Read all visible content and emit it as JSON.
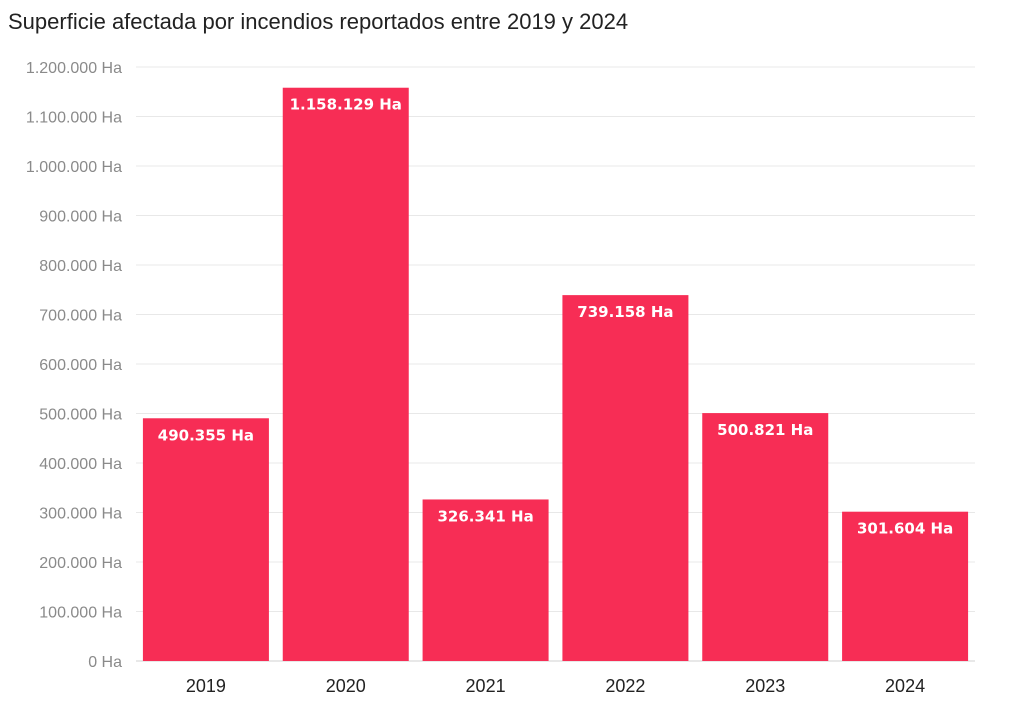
{
  "chart_data": {
    "type": "bar",
    "title": "Superficie afectada por incendios reportados entre 2019 y 2024",
    "xlabel": "",
    "ylabel": "",
    "categories": [
      "2019",
      "2020",
      "2021",
      "2022",
      "2023",
      "2024"
    ],
    "values": [
      490355,
      1158129,
      326341,
      739158,
      500821,
      301604
    ],
    "data_labels": [
      "490.355 Ha",
      "1.158.129 Ha",
      "326.341 Ha",
      "739.158 Ha",
      "500.821 Ha",
      "301.604 Ha"
    ],
    "ylim": [
      0,
      1200000
    ],
    "yticks": [
      0,
      100000,
      200000,
      300000,
      400000,
      500000,
      600000,
      700000,
      800000,
      900000,
      1000000,
      1100000,
      1200000
    ],
    "ytick_labels": [
      "0 Ha",
      "100.000 Ha",
      "200.000 Ha",
      "300.000 Ha",
      "400.000 Ha",
      "500.000 Ha",
      "600.000 Ha",
      "700.000 Ha",
      "800.000 Ha",
      "900.000 Ha",
      "1.000.000 Ha",
      "1.100.000 Ha",
      "1.200.000 Ha"
    ],
    "grid": true,
    "legend": "none",
    "bar_color": "#f72d55"
  }
}
